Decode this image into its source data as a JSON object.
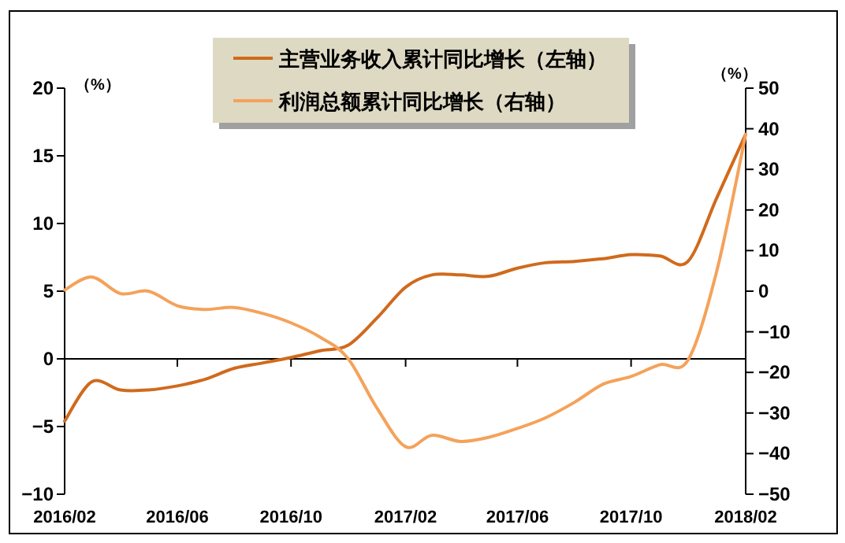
{
  "chart_data": {
    "type": "line",
    "ylabel": "（%）",
    "y2label": "（%）",
    "legend": "top",
    "marker": "none",
    "line_style": "solid",
    "x": [
      "2016-02",
      "2016-03",
      "2016-04",
      "2016-05",
      "2016-06",
      "2016-07",
      "2016-08",
      "2016-09",
      "2016-10",
      "2016-11",
      "2016-12",
      "2017-01",
      "2017-02",
      "2017-03",
      "2017-04",
      "2017-05",
      "2017-06",
      "2017-07",
      "2017-08",
      "2017-09",
      "2017-10",
      "2017-11",
      "2017-12",
      "2018-01",
      "2018-02"
    ],
    "series": [
      {
        "name": "主营业务收入累计同比增长（左轴）",
        "color": "#d06a1c",
        "values": [
          -4.6,
          -1.7,
          -2.3,
          -2.3,
          -2.0,
          -1.5,
          -0.7,
          -0.3,
          0.1,
          0.6,
          1.0,
          3.0,
          5.3,
          6.2,
          6.2,
          6.1,
          6.7,
          7.1,
          7.2,
          7.4,
          7.7,
          7.6,
          7.2,
          11.9,
          16.6
        ]
      },
      {
        "name": "利润总额累计同比增长（右轴）",
        "color": "#f4a25a",
        "axis": "y2",
        "values": [
          0.3,
          3.5,
          -0.6,
          0.0,
          -3.6,
          -4.5,
          -4.0,
          -5.5,
          -7.8,
          -11.3,
          -16.5,
          -28.7,
          -38.3,
          -35.5,
          -37.0,
          -36.0,
          -33.8,
          -31.2,
          -27.4,
          -22.9,
          -21.0,
          -18.1,
          -17.0,
          5.0,
          38.6
        ]
      }
    ],
    "xlim": [
      "2016-02",
      "2018-02"
    ],
    "xticks": [
      {
        "value": "2016-02",
        "label": "2016/02"
      },
      {
        "value": "2016-06",
        "label": "2016/06"
      },
      {
        "value": "2016-10",
        "label": "2016/10"
      },
      {
        "value": "2017-02",
        "label": "2017/02"
      },
      {
        "value": "2017-06",
        "label": "2017/06"
      },
      {
        "value": "2017-10",
        "label": "2017/10"
      },
      {
        "value": "2018-02",
        "label": "2018/02"
      }
    ],
    "ylim": [
      -10,
      20
    ],
    "yticks": [
      -10,
      -5,
      0,
      5,
      10,
      15,
      20
    ],
    "y2lim": [
      -50,
      50
    ],
    "y2ticks": [
      -50,
      -40,
      -30,
      -20,
      -10,
      0,
      10,
      20,
      30,
      40,
      50
    ]
  }
}
